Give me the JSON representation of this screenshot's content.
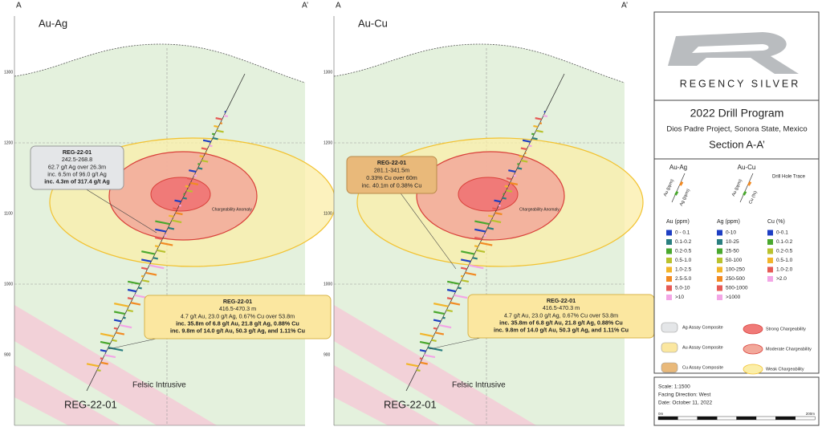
{
  "panels": [
    {
      "title": "Au-Ag",
      "left": "A",
      "right": "A’",
      "elevations": [
        "1300",
        "1200",
        "1100",
        "1000",
        "900"
      ],
      "anomaly": "Chargeability Anomaly",
      "intrusive": "Felsic Intrusive",
      "hole": "REG-22-01",
      "callouts": [
        {
          "lines": [
            "REG-22-01",
            "242.5-268.8",
            "62.7 g/t Ag over 26.3m",
            "inc. 6.5m of 96.0 g/t Ag",
            "inc. 4.3m of 317.4 g/t Ag"
          ]
        },
        {
          "lines": [
            "REG-22-01",
            "416.5-470.3 m",
            "4.7 g/t Au, 23.0 g/t Ag, 0.67% Cu over 53.8m",
            "inc. 35.8m of 6.8 g/t Au, 21.8 g/t Ag, 0.88% Cu",
            "inc. 9.8m of 14.0 g/t Au, 50.3 g/t Ag, and 1.11% Cu"
          ]
        }
      ]
    },
    {
      "title": "Au-Cu",
      "left": "A",
      "right": "A’",
      "elevations": [
        "1300",
        "1200",
        "1100",
        "1000",
        "900"
      ],
      "anomaly": "Chargeability Anomaly",
      "intrusive": "Felsic Intrusive",
      "hole": "REG-22-01",
      "callouts": [
        {
          "lines": [
            "REG-22-01",
            "281.1-341.5m",
            "0.33% Cu over 60m",
            "inc. 40.1m of 0.38% Cu"
          ]
        },
        {
          "lines": [
            "REG-22-01",
            "416.5-470.3 m",
            "4.7 g/t Au, 23.0 g/t Ag, 0.67% Cu over 53.8m",
            "inc. 35.8m of 6.8 g/t Au, 21.8 g/t Ag, 0.88% Cu",
            "inc. 9.8m of 14.0 g/t Au, 50.3 g/t Ag, and 1.11% Cu"
          ]
        }
      ]
    }
  ],
  "sidebar": {
    "logo": "REGENCY SILVER",
    "program": "2022 Drill Program",
    "project": "Dios Padre Project, Sonora State, Mexico",
    "section": "Section A-A’",
    "trace_keys": [
      {
        "title": "Au-Ag",
        "a": "Au (ppm)",
        "b": "Ag (ppm)"
      },
      {
        "title": "Au-Cu",
        "a": "Au (ppm)",
        "b": "Cu (%)"
      }
    ],
    "trace": "Drill Hole Trace",
    "scales": [
      {
        "title": "Au (ppm)",
        "items": [
          {
            "label": "0 - 0.1",
            "color": "#1e3fc4"
          },
          {
            "label": "0.1-0.2",
            "color": "#2a7f80"
          },
          {
            "label": "0.2-0.5",
            "color": "#4aa82e"
          },
          {
            "label": "0.5-1.0",
            "color": "#b9c22e"
          },
          {
            "label": "1.0-2.5",
            "color": "#f2b52a"
          },
          {
            "label": "2.5-5.0",
            "color": "#f28a22"
          },
          {
            "label": "5.0-10",
            "color": "#e65a55"
          },
          {
            "label": ">10",
            "color": "#f3a6e6"
          }
        ]
      },
      {
        "title": "Ag (ppm)",
        "items": [
          {
            "label": "0-10",
            "color": "#1e3fc4"
          },
          {
            "label": "10-25",
            "color": "#2a7f80"
          },
          {
            "label": "25-50",
            "color": "#4aa82e"
          },
          {
            "label": "50-100",
            "color": "#b9c22e"
          },
          {
            "label": "100-250",
            "color": "#f2b52a"
          },
          {
            "label": "250-500",
            "color": "#f28a22"
          },
          {
            "label": "500-1000",
            "color": "#e65a55"
          },
          {
            "label": ">1000",
            "color": "#f3a6e6"
          }
        ]
      },
      {
        "title": "Cu (%)",
        "items": [
          {
            "label": "0-0.1",
            "color": "#1e3fc4"
          },
          {
            "label": "0.1-0.2",
            "color": "#4aa82e"
          },
          {
            "label": "0.2-0.5",
            "color": "#b9c22e"
          },
          {
            "label": "0.5-1.0",
            "color": "#f2b52a"
          },
          {
            "label": "1.0-2.0",
            "color": "#e65a55"
          },
          {
            "label": ">2.0",
            "color": "#f3a6e6"
          }
        ]
      }
    ],
    "composites": [
      {
        "label": "Ag Assay Composite",
        "color": "#e4e6e8"
      },
      {
        "label": "Au Assay Composite",
        "color": "#fbe7a0"
      },
      {
        "label": "Cu Assay Composite",
        "color": "#e9b97a"
      }
    ],
    "chargeability": [
      {
        "label": "Strong Chargeability",
        "color": "#f07a78"
      },
      {
        "label": "Moderate Chargeability",
        "color": "#f2a89a"
      },
      {
        "label": "Weak Chargeability",
        "color": "#fbeea8"
      }
    ],
    "scale": "Scale: 1:1500",
    "facing": "Facing Direction: West",
    "date": "Date: October 11, 2022",
    "bar_left": "0m",
    "bar_right": "200m"
  }
}
